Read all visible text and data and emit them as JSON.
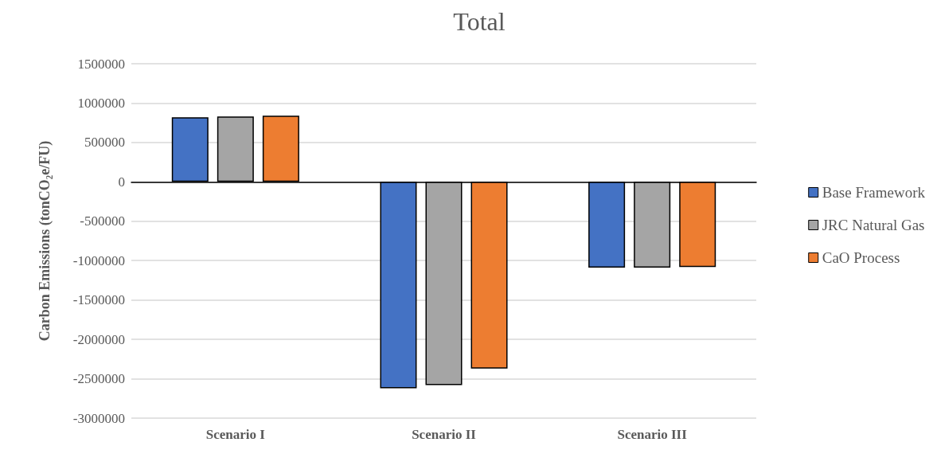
{
  "chart_data": {
    "type": "bar",
    "title": "Total",
    "ylabel": "Carbon Emissions (tonCO₂e/FU)",
    "categories": [
      "Scenario I",
      "Scenario II",
      "Scenario III"
    ],
    "series": [
      {
        "name": "Base Framework",
        "color": "#4472c4",
        "values": [
          820000,
          -2620000,
          -1090000
        ]
      },
      {
        "name": "JRC Natural Gas",
        "color": "#a5a5a5",
        "values": [
          830000,
          -2580000,
          -1090000
        ]
      },
      {
        "name": "CaO Process",
        "color": "#ed7d31",
        "values": [
          840000,
          -2370000,
          -1080000
        ]
      }
    ],
    "ylim": [
      -3000000,
      1500000
    ],
    "yticks": [
      -3000000,
      -2500000,
      -2000000,
      -1500000,
      -1000000,
      -500000,
      0,
      500000,
      1000000,
      1500000
    ],
    "grid": "y",
    "legend": "right"
  }
}
